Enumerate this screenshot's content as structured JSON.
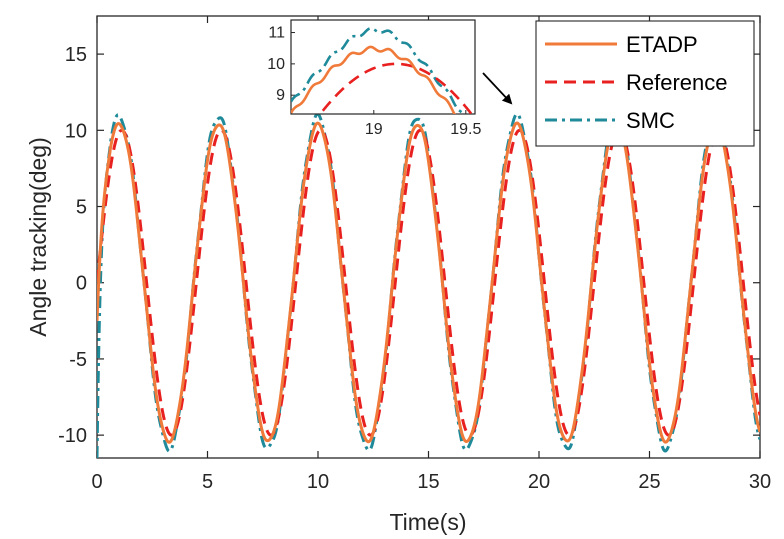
{
  "chart_data": {
    "type": "line",
    "title": "",
    "xlabel": "Time(s)",
    "ylabel": "Angle tracking(deg)",
    "xlim": [
      0,
      30
    ],
    "ylim": [
      -11.5,
      17.5
    ],
    "xticks": [
      0,
      5,
      10,
      15,
      20,
      25,
      30
    ],
    "yticks": [
      -10,
      -5,
      0,
      5,
      10,
      15
    ],
    "xtick_labels": [
      "0",
      "5",
      "10",
      "15",
      "20",
      "25",
      "30"
    ],
    "ytick_labels": [
      "-10",
      "-5",
      "0",
      "5",
      "10",
      "15"
    ],
    "legend_position": "top-right",
    "reference_signal": {
      "amplitude": 10,
      "period": 4.5,
      "peak_time": 19.12
    },
    "series": [
      {
        "name": "ETADP",
        "color": "#F07A3A",
        "style": "solid",
        "amplitude": 10.4,
        "phase_lead": 0.12,
        "start_value": -2.5
      },
      {
        "name": "Reference",
        "color": "#E8201F",
        "style": "dashed",
        "amplitude": 10.0,
        "phase_lead": 0.0,
        "start_value": 0
      },
      {
        "name": "SMC",
        "color": "#1F8A9A",
        "style": "dashdot",
        "amplitude": 10.9,
        "phase_lead": 0.12,
        "start_value": -11.5
      }
    ],
    "inset": {
      "xlim": [
        18.55,
        19.55
      ],
      "ylim": [
        8.4,
        11.4
      ],
      "xticks": [
        19,
        19.5
      ],
      "yticks": [
        9,
        10,
        11
      ],
      "xtick_labels": [
        "19",
        "19.5"
      ],
      "ytick_labels": [
        "9",
        "10",
        "11"
      ],
      "annotation": "arrow pointing to the peak near t = 19 s"
    }
  }
}
